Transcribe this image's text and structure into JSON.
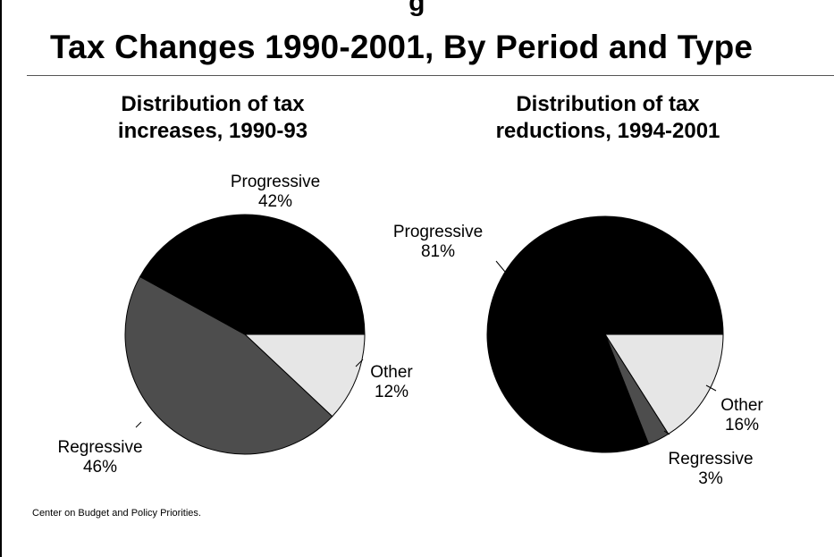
{
  "page": {
    "top_fragment": "g",
    "title": "Tax Changes 1990-2001, By Period and Type",
    "source": "Center on Budget and Policy Priorities."
  },
  "chart_data": [
    {
      "type": "pie",
      "title_lines": [
        "Distribution of tax",
        "increases, 1990-93"
      ],
      "slices": [
        {
          "label": "Progressive",
          "value": 42,
          "value_label": "42%",
          "color": "#000000"
        },
        {
          "label": "Regressive",
          "value": 46,
          "value_label": "46%",
          "color": "#4d4d4d"
        },
        {
          "label": "Other",
          "value": 12,
          "value_label": "12%",
          "color": "#e6e6e6"
        }
      ],
      "legend": "none"
    },
    {
      "type": "pie",
      "title_lines": [
        "Distribution of tax",
        "reductions, 1994-2001"
      ],
      "slices": [
        {
          "label": "Progressive",
          "value": 81,
          "value_label": "81%",
          "color": "#000000"
        },
        {
          "label": "Regressive",
          "value": 3,
          "value_label": "3%",
          "color": "#4d4d4d"
        },
        {
          "label": "Other",
          "value": 16,
          "value_label": "16%",
          "color": "#e6e6e6"
        }
      ],
      "legend": "none"
    }
  ]
}
